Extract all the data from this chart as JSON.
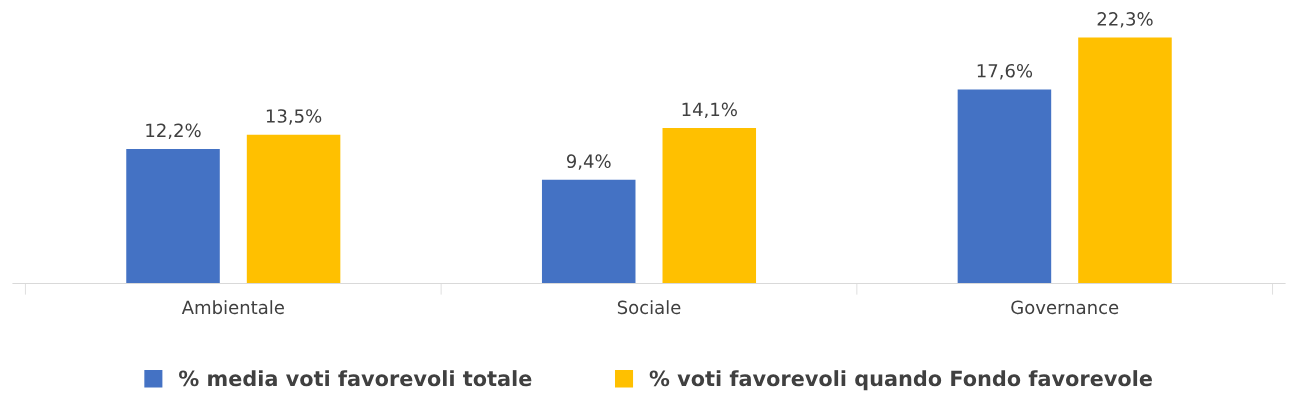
{
  "chart_data": {
    "type": "bar",
    "categories": [
      "Ambientale",
      "Sociale",
      "Governance"
    ],
    "series": [
      {
        "name": "% media voti favorevoli totale",
        "color": "#4472c4",
        "values": [
          12.2,
          9.4,
          17.6
        ],
        "value_labels": [
          "12,2%",
          "9,4%",
          "17,6%"
        ]
      },
      {
        "name": "% voti favorevoli quando Fondo favorevole",
        "color": "#ffc000",
        "values": [
          13.5,
          14.1,
          22.3
        ],
        "value_labels": [
          "13,5%",
          "14,1%",
          "22,3%"
        ]
      }
    ],
    "legend": "bottom"
  }
}
